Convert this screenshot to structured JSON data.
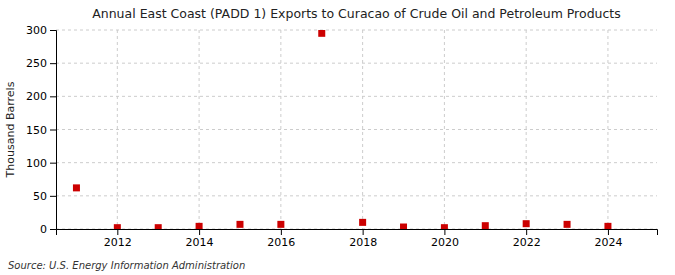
{
  "chart_data": {
    "type": "scatter",
    "title": "Annual East Coast (PADD 1) Exports to Curacao of Crude Oil and Petroleum Products",
    "ylabel": "Thousand Barrels",
    "source": "Source: U.S. Energy Information Administration",
    "x": [
      2011,
      2012,
      2013,
      2014,
      2015,
      2016,
      2017,
      2018,
      2019,
      2020,
      2021,
      2022,
      2023,
      2024
    ],
    "values": [
      62,
      2,
      2,
      4,
      7,
      7,
      295,
      10,
      3,
      2,
      5,
      8,
      7,
      4
    ],
    "color": "#cc0000",
    "marker": "square",
    "xlim": [
      2010.5,
      2025.2
    ],
    "xticks": [
      2012,
      2014,
      2016,
      2018,
      2020,
      2022,
      2024
    ],
    "ylim": [
      0,
      300
    ],
    "yticks": [
      0,
      50,
      100,
      150,
      200,
      250,
      300
    ],
    "grid": true
  }
}
